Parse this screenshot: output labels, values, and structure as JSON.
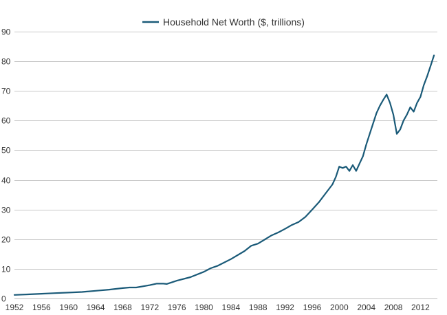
{
  "chart_data": {
    "type": "line",
    "title": "",
    "xlabel": "",
    "ylabel": "",
    "legend": {
      "position": "top-center",
      "entries": [
        "Household Net Worth ($, trillions)"
      ]
    },
    "grid": {
      "y": true,
      "x": false
    },
    "xlim": [
      1952,
      2014.5
    ],
    "ylim": [
      0,
      90
    ],
    "x_ticks": [
      1952,
      1956,
      1960,
      1964,
      1968,
      1972,
      1976,
      1980,
      1984,
      1988,
      1992,
      1996,
      2000,
      2004,
      2008,
      2012
    ],
    "y_ticks": [
      0,
      10,
      20,
      30,
      40,
      50,
      60,
      70,
      80,
      90
    ],
    "line_color": "#1a5a78",
    "series": [
      {
        "name": "Household Net Worth ($, trillions)",
        "x": [
          1952,
          1954,
          1956,
          1958,
          1960,
          1962,
          1964,
          1966,
          1968,
          1969,
          1970,
          1972,
          1973,
          1974,
          1974.5,
          1976,
          1978,
          1980,
          1981,
          1982,
          1984,
          1986,
          1987,
          1988,
          1990,
          1991,
          1992,
          1993,
          1994,
          1995,
          1996,
          1997,
          1998,
          1998.5,
          1999,
          1999.5,
          2000,
          2000.5,
          2001,
          2001.5,
          2002,
          2002.5,
          2003,
          2003.5,
          2004,
          2004.5,
          2005,
          2005.5,
          2006,
          2006.5,
          2007,
          2007.5,
          2008,
          2008.5,
          2009,
          2009.5,
          2010,
          2010.5,
          2011,
          2011.5,
          2012,
          2012.5,
          2013,
          2013.5,
          2014
        ],
        "values": [
          1.2,
          1.4,
          1.6,
          1.8,
          2.0,
          2.2,
          2.6,
          3.0,
          3.5,
          3.7,
          3.7,
          4.5,
          5.0,
          5.0,
          4.9,
          6.0,
          7.2,
          9.0,
          10.2,
          11.0,
          13.3,
          16.0,
          17.8,
          18.5,
          21.3,
          22.3,
          23.5,
          24.8,
          25.8,
          27.5,
          30.0,
          32.5,
          35.5,
          37.0,
          38.5,
          41.0,
          44.5,
          44.0,
          44.5,
          43.0,
          45.0,
          43.0,
          45.5,
          48.0,
          52.0,
          55.5,
          59.0,
          62.5,
          65.0,
          67.0,
          68.8,
          66.0,
          62.0,
          55.5,
          57.0,
          60.0,
          62.0,
          64.5,
          63.0,
          66.0,
          68.0,
          72.0,
          75.0,
          78.5,
          82.0
        ]
      }
    ]
  }
}
